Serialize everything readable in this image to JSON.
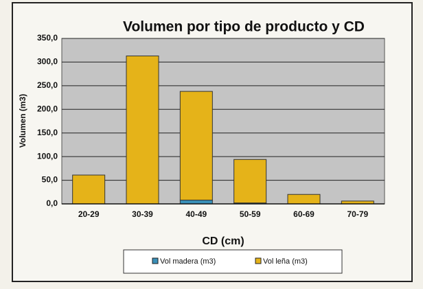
{
  "chart_data": {
    "type": "stacked_bar",
    "title": "Volumen por tipo de producto y CD",
    "x_label": "CD (cm)",
    "y_label": "Volumen (m3)",
    "categories": [
      "20-29",
      "30-39",
      "40-49",
      "50-59",
      "60-69",
      "70-79"
    ],
    "series": [
      {
        "name": "Vol madera (m3)",
        "color": "#3a8fb7",
        "values": [
          0,
          0,
          8,
          2,
          0,
          0
        ]
      },
      {
        "name": "Vol leña (m3)",
        "color": "#e5b319",
        "values": [
          61,
          313,
          230,
          92,
          20,
          6
        ]
      }
    ],
    "ylim": [
      0,
      350
    ],
    "yticks": [
      {
        "value": 0,
        "label": "0,0"
      },
      {
        "value": 50,
        "label": "50,0"
      },
      {
        "value": 100,
        "label": "100,0"
      },
      {
        "value": 150,
        "label": "150,0"
      },
      {
        "value": 200,
        "label": "200,0"
      },
      {
        "value": 250,
        "label": "250,0"
      },
      {
        "value": 300,
        "label": "300,0"
      },
      {
        "value": 350,
        "label": "350,0"
      }
    ],
    "grid": true,
    "legend": "bottom"
  }
}
